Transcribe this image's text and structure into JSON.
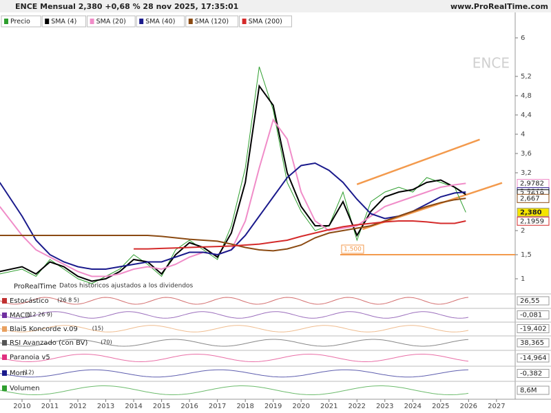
{
  "header": {
    "title": "ENCE Mensual 2,380 +0,68 % 28 nov 2025, 17:35:01",
    "site": "www.ProRealTime.com"
  },
  "chart_data": {
    "type": "line",
    "watermark": "ENCE",
    "source": "ProRealTime",
    "note": "Datos históricos ajustados a los dividendos",
    "x": [
      2009.2,
      2010,
      2010.5,
      2011,
      2011.5,
      2012,
      2012.5,
      2013,
      2013.5,
      2014,
      2014.5,
      2015,
      2015.5,
      2016,
      2016.5,
      2017,
      2017.5,
      2018,
      2018.5,
      2019,
      2019.5,
      2020,
      2020.5,
      2021,
      2021.5,
      2022,
      2022.5,
      2023,
      2023.5,
      2024,
      2024.5,
      2025,
      2025.5,
      2025.9
    ],
    "xlim": [
      2009.21,
      2027.67
    ],
    "xticks": [
      2010,
      2011,
      2012,
      2013,
      2014,
      2015,
      2016,
      2017,
      2018,
      2019,
      2020,
      2021,
      2022,
      2023,
      2024,
      2025,
      2026,
      2027
    ],
    "ylim": [
      0.7,
      6.5
    ],
    "yticks": [
      1,
      {
        "value": 1.5,
        "label": "1,5"
      },
      2,
      {
        "value": 3.2,
        "label": "3,2"
      },
      {
        "value": 3.6,
        "label": "3,6"
      },
      4,
      {
        "value": 4.4,
        "label": "4,4"
      },
      {
        "value": 4.8,
        "label": "4,8"
      },
      {
        "value": 5.2,
        "label": "5,2"
      },
      6
    ],
    "series": [
      {
        "name": "Precio",
        "color": "#2e9e2e",
        "values": [
          1.1,
          1.2,
          1.05,
          1.4,
          1.2,
          1.0,
          0.9,
          1.05,
          1.2,
          1.5,
          1.3,
          1.05,
          1.6,
          1.8,
          1.6,
          1.4,
          2.1,
          3.3,
          5.4,
          4.5,
          3.0,
          2.4,
          2.0,
          2.1,
          2.8,
          1.8,
          2.6,
          2.8,
          2.9,
          2.8,
          3.1,
          3.0,
          2.9,
          2.38
        ]
      },
      {
        "name": "SMA (4)",
        "color": "#000000",
        "values": [
          1.15,
          1.25,
          1.1,
          1.35,
          1.25,
          1.05,
          0.95,
          1.0,
          1.15,
          1.4,
          1.35,
          1.1,
          1.5,
          1.75,
          1.65,
          1.45,
          1.95,
          3.0,
          5.0,
          4.6,
          3.2,
          2.5,
          2.1,
          2.1,
          2.6,
          1.9,
          2.4,
          2.7,
          2.8,
          2.85,
          3.0,
          3.05,
          2.9,
          2.75
        ]
      },
      {
        "name": "SMA (20)",
        "color": "#f08cc8",
        "values": [
          2.5,
          1.9,
          1.6,
          1.45,
          1.3,
          1.15,
          1.05,
          1.05,
          1.1,
          1.2,
          1.25,
          1.2,
          1.3,
          1.45,
          1.55,
          1.5,
          1.6,
          2.2,
          3.3,
          4.3,
          3.9,
          2.8,
          2.2,
          2.0,
          2.05,
          2.1,
          2.3,
          2.5,
          2.6,
          2.7,
          2.8,
          2.9,
          2.95,
          2.98
        ]
      },
      {
        "name": "SMA (40)",
        "color": "#1a1a8c",
        "values": [
          3.0,
          2.3,
          1.8,
          1.5,
          1.35,
          1.25,
          1.2,
          1.2,
          1.25,
          1.3,
          1.35,
          1.35,
          1.45,
          1.55,
          1.55,
          1.5,
          1.6,
          1.9,
          2.3,
          2.7,
          3.1,
          3.35,
          3.4,
          3.25,
          3.0,
          2.65,
          2.35,
          2.25,
          2.3,
          2.4,
          2.55,
          2.7,
          2.78,
          2.8
        ]
      },
      {
        "name": "SMA (120)",
        "color": "#8b4a12",
        "values": [
          1.9,
          1.9,
          1.9,
          1.9,
          1.9,
          1.9,
          1.9,
          1.9,
          1.9,
          1.9,
          1.9,
          1.88,
          1.85,
          1.82,
          1.8,
          1.78,
          1.72,
          1.65,
          1.6,
          1.58,
          1.62,
          1.7,
          1.85,
          1.95,
          2.0,
          2.05,
          2.1,
          2.2,
          2.3,
          2.4,
          2.5,
          2.58,
          2.64,
          2.67
        ]
      },
      {
        "name": "SMA (200)",
        "color": "#d42a2a",
        "values": [
          null,
          null,
          null,
          null,
          null,
          null,
          null,
          null,
          null,
          1.62,
          1.62,
          1.63,
          1.64,
          1.65,
          1.66,
          1.67,
          1.68,
          1.7,
          1.72,
          1.76,
          1.8,
          1.88,
          1.95,
          2.02,
          2.08,
          2.12,
          2.15,
          2.18,
          2.2,
          2.2,
          2.18,
          2.15,
          2.15,
          2.2
        ]
      }
    ],
    "drawings": [
      {
        "color": "#f39a4d",
        "x": [
          2022.0,
          2026.4
        ],
        "y": [
          2.96,
          3.89
        ]
      },
      {
        "color": "#f39a4d",
        "x": [
          2022.2,
          2027.2
        ],
        "y": [
          2.03,
          2.99
        ]
      }
    ],
    "support": {
      "value": 1.5,
      "label": "1,500",
      "color": "#f39a4d",
      "from": 2021.4
    },
    "price_labels": [
      {
        "value": 2.9782,
        "label": "2,9782",
        "color": "#f08cc8"
      },
      {
        "value": 2.804,
        "label": "2,8040",
        "color": "#1a1a8c"
      },
      {
        "value": 2.7619,
        "label": "2,7619",
        "color": "#000000"
      },
      {
        "value": 2.667,
        "label": "2,667",
        "color": "#8b4a12"
      },
      {
        "value": 2.38,
        "label": "2,380",
        "color": "#f5e400"
      },
      {
        "value": 2.1959,
        "label": "2,1959",
        "color": "#d42a2a"
      }
    ]
  },
  "indicators": [
    {
      "name": "Estocástico",
      "params": "(26 8 5)",
      "value": "26,55",
      "color": "#c03030"
    },
    {
      "name": "MACD",
      "params": "(12 26 9)",
      "value": "-0,081",
      "color": "#7030a0"
    },
    {
      "name": "Blai5 Koncorde v.09",
      "params": "(15)",
      "value": "-19,402",
      "color": "#e8a060"
    },
    {
      "name": "RSI Avanzado (con BV)",
      "params": "(70)",
      "value": "38,365",
      "color": "#555555"
    },
    {
      "name": "Paranoia v5",
      "value": "-14,964",
      "color": "#e03080"
    },
    {
      "name": "Mom",
      "params": "(12)",
      "value": "-0,382",
      "color": "#1a1a8c"
    },
    {
      "name": "Volumen",
      "value": "8,6M",
      "color": "#2e9e2e"
    }
  ]
}
